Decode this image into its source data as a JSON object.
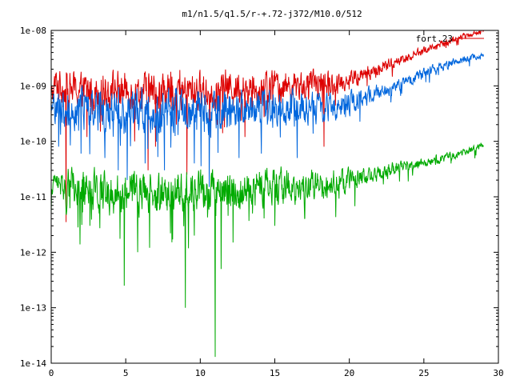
{
  "chart_data": {
    "type": "line",
    "title": "m1/n1.5/q1.5/r-+.72-j372/M10.0/512",
    "xlabel": "",
    "ylabel": "",
    "x_ticks": [
      "0",
      "5",
      "10",
      "15",
      "20",
      "25",
      "30"
    ],
    "y_ticks": [
      "1e-08",
      "1e-09",
      "1e-10",
      "1e-11",
      "1e-12",
      "1e-13",
      "1e-14"
    ],
    "xlim": [
      0,
      30
    ],
    "ylim": [
      1e-14,
      1e-08
    ],
    "y_scale": "log",
    "grid": false,
    "legend": {
      "placement": "top-right",
      "entries": [
        "fort.23"
      ]
    },
    "series": [
      {
        "name": "fort.23",
        "color": "#dd0000",
        "x": [
          0.0,
          0.3,
          1.0,
          2.0,
          3.0,
          4.0,
          5.0,
          6.0,
          7.0,
          8.0,
          9.0,
          10.0,
          11.0,
          12.0,
          13.0,
          14.0,
          15.0,
          16.0,
          17.0,
          18.0,
          19.0,
          20.0,
          21.0,
          22.0,
          23.0,
          24.0,
          25.0,
          26.0,
          27.0,
          28.0,
          29.0
        ],
        "y": [
          6e-10,
          1.1e-09,
          9e-10,
          8e-10,
          8e-10,
          9e-10,
          8e-10,
          8e-10,
          8e-10,
          8e-10,
          8e-10,
          8e-10,
          8e-10,
          1e-09,
          9e-10,
          9e-10,
          1e-09,
          1e-09,
          1e-09,
          1.1e-09,
          1.1e-09,
          1.3e-09,
          1.6e-09,
          2e-09,
          2.6e-09,
          3.4e-09,
          4.3e-09,
          5.4e-09,
          6.8e-09,
          8.3e-09,
          9.8e-09
        ],
        "noise": [
          0.35,
          0.45,
          0.5,
          0.5,
          0.5,
          0.5,
          0.5,
          0.5,
          0.5,
          0.5,
          0.5,
          0.5,
          0.5,
          0.45,
          0.45,
          0.45,
          0.45,
          0.4,
          0.4,
          0.35,
          0.3,
          0.25,
          0.2,
          0.18,
          0.15,
          0.12,
          0.12,
          0.1,
          0.1,
          0.08,
          0.06
        ],
        "spikes": [
          [
            1.0,
            3.5e-12
          ],
          [
            2.4,
            1.2e-10
          ],
          [
            3.3,
            1.5e-10
          ],
          [
            5.6,
            1e-10
          ],
          [
            6.5,
            3e-11
          ],
          [
            7.0,
            8e-11
          ],
          [
            8.4,
            2e-10
          ],
          [
            9.1,
            2.5e-11
          ],
          [
            11.5,
            1.4e-10
          ],
          [
            13.0,
            1.2e-10
          ],
          [
            18.3,
            8e-11
          ]
        ]
      },
      {
        "name": "",
        "color": "#0066dd",
        "x": [
          0.0,
          0.3,
          1.0,
          2.0,
          3.0,
          4.0,
          5.0,
          6.0,
          7.0,
          8.0,
          9.0,
          10.0,
          11.0,
          12.0,
          13.0,
          14.0,
          15.0,
          16.0,
          17.0,
          18.0,
          19.0,
          20.0,
          21.0,
          22.0,
          23.0,
          24.0,
          25.0,
          26.0,
          27.0,
          28.0,
          29.0
        ],
        "y": [
          2.5e-10,
          5e-10,
          4e-10,
          3.5e-10,
          3.5e-10,
          3.5e-10,
          3.5e-10,
          3.5e-10,
          3.5e-10,
          3.5e-10,
          3.5e-10,
          3.5e-10,
          3.5e-10,
          3.5e-10,
          4e-10,
          4e-10,
          4e-10,
          4e-10,
          4e-10,
          4e-10,
          4.5e-10,
          5e-10,
          6e-10,
          7.5e-10,
          1e-09,
          1.3e-09,
          1.7e-09,
          2.2e-09,
          2.7e-09,
          3.1e-09,
          3.6e-09
        ],
        "noise": [
          0.35,
          0.5,
          0.55,
          0.55,
          0.55,
          0.55,
          0.55,
          0.55,
          0.55,
          0.55,
          0.55,
          0.55,
          0.55,
          0.5,
          0.5,
          0.5,
          0.5,
          0.45,
          0.45,
          0.4,
          0.35,
          0.3,
          0.25,
          0.22,
          0.18,
          0.15,
          0.14,
          0.12,
          0.12,
          0.1,
          0.08
        ],
        "spikes": [
          [
            0.5,
            8e-11
          ],
          [
            2.0,
            6e-11
          ],
          [
            3.6,
            5e-11
          ],
          [
            4.5,
            3e-11
          ],
          [
            5.1,
            2e-11
          ],
          [
            6.3,
            4e-11
          ],
          [
            7.6,
            3e-11
          ],
          [
            9.6,
            4e-11
          ],
          [
            10.6,
            1.5e-11
          ],
          [
            12.6,
            5e-11
          ],
          [
            14.1,
            6e-11
          ],
          [
            16.5,
            5e-11
          ]
        ]
      },
      {
        "name": "",
        "color": "#00aa00",
        "x": [
          0.0,
          0.3,
          1.0,
          2.0,
          3.0,
          4.0,
          5.0,
          6.0,
          7.0,
          8.0,
          9.0,
          10.0,
          11.0,
          12.0,
          13.0,
          14.0,
          15.0,
          16.0,
          17.0,
          18.0,
          19.0,
          20.0,
          21.0,
          22.0,
          23.0,
          24.0,
          25.0,
          26.0,
          27.0,
          28.0,
          29.0
        ],
        "y": [
          1.5e-11,
          2e-11,
          1.5e-11,
          1.3e-11,
          1.2e-11,
          1.2e-11,
          1.2e-11,
          1.2e-11,
          1.2e-11,
          1.2e-11,
          1.2e-11,
          1.2e-11,
          1.3e-11,
          1.3e-11,
          1.4e-11,
          1.5e-11,
          1.5e-11,
          1.6e-11,
          1.6e-11,
          1.7e-11,
          1.8e-11,
          2e-11,
          2.3e-11,
          2.7e-11,
          3.1e-11,
          3.6e-11,
          4.2e-11,
          4.8e-11,
          5.7e-11,
          6.8e-11,
          8.5e-11
        ],
        "noise": [
          0.25,
          0.2,
          0.5,
          0.55,
          0.55,
          0.55,
          0.55,
          0.55,
          0.55,
          0.55,
          0.55,
          0.55,
          0.55,
          0.5,
          0.5,
          0.5,
          0.5,
          0.45,
          0.45,
          0.4,
          0.35,
          0.3,
          0.25,
          0.2,
          0.18,
          0.15,
          0.13,
          0.12,
          0.1,
          0.1,
          0.08
        ],
        "spikes": [
          [
            0.0,
            5e-12
          ],
          [
            1.0,
            5e-12
          ],
          [
            1.8,
            2.8e-12
          ],
          [
            2.6,
            3e-12
          ],
          [
            4.9,
            2.5e-13
          ],
          [
            5.8,
            1e-12
          ],
          [
            6.6,
            1.2e-12
          ],
          [
            8.0,
            2.2e-12
          ],
          [
            9.0,
            1e-13
          ],
          [
            9.6,
            2e-12
          ],
          [
            11.0,
            1.3e-14
          ],
          [
            11.4,
            5e-13
          ],
          [
            12.2,
            1.5e-12
          ],
          [
            13.5,
            5e-12
          ],
          [
            15.0,
            3e-12
          ],
          [
            17.0,
            4e-12
          ]
        ]
      }
    ]
  }
}
